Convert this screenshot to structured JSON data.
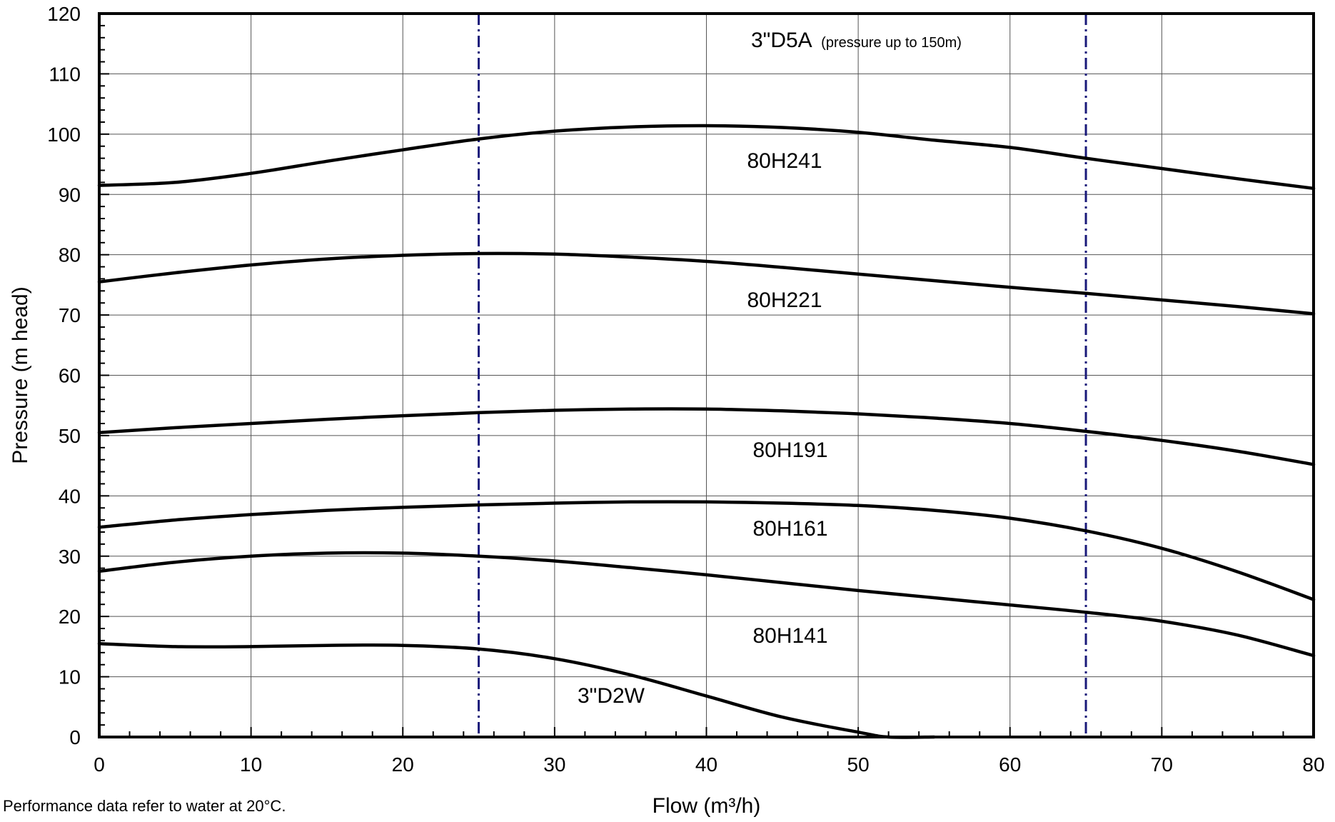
{
  "chart_data": {
    "type": "line",
    "title": "",
    "xlabel": "Flow (m³/h)",
    "ylabel": "Pressure (m head)",
    "xlim": [
      0,
      80
    ],
    "ylim": [
      0,
      120
    ],
    "xticks": [
      0,
      10,
      20,
      30,
      40,
      50,
      60,
      70,
      80
    ],
    "yticks": [
      0,
      10,
      20,
      30,
      40,
      50,
      60,
      70,
      80,
      90,
      100,
      110,
      120
    ],
    "grid": true,
    "legend": "none",
    "vertical_lines": [
      25,
      65
    ],
    "series": [
      {
        "name": "80H241",
        "x": [
          0,
          5,
          10,
          15,
          20,
          25,
          30,
          35,
          40,
          45,
          50,
          55,
          60,
          65,
          70,
          75,
          80
        ],
        "y": [
          91.5,
          92.0,
          93.5,
          95.5,
          97.4,
          99.2,
          100.5,
          101.2,
          101.4,
          101.1,
          100.3,
          99.0,
          97.8,
          96.0,
          94.3,
          92.6,
          91.0
        ]
      },
      {
        "name": "80H221",
        "x": [
          0,
          5,
          10,
          15,
          20,
          25,
          30,
          35,
          40,
          45,
          50,
          55,
          60,
          65,
          70,
          75,
          80
        ],
        "y": [
          75.5,
          77.0,
          78.3,
          79.3,
          79.9,
          80.2,
          80.1,
          79.6,
          78.9,
          77.9,
          76.8,
          75.7,
          74.6,
          73.6,
          72.5,
          71.4,
          70.2
        ]
      },
      {
        "name": "80H191",
        "x": [
          0,
          5,
          10,
          15,
          20,
          25,
          30,
          35,
          40,
          45,
          50,
          55,
          60,
          65,
          70,
          75,
          80
        ],
        "y": [
          50.5,
          51.3,
          52.0,
          52.7,
          53.3,
          53.8,
          54.2,
          54.4,
          54.4,
          54.1,
          53.6,
          52.9,
          52.0,
          50.7,
          49.2,
          47.4,
          45.2
        ]
      },
      {
        "name": "80H161",
        "x": [
          0,
          5,
          10,
          15,
          20,
          25,
          30,
          35,
          40,
          45,
          50,
          55,
          60,
          65,
          70,
          75,
          80
        ],
        "y": [
          34.8,
          36.0,
          36.9,
          37.6,
          38.1,
          38.5,
          38.8,
          39.0,
          39.0,
          38.8,
          38.4,
          37.6,
          36.3,
          34.2,
          31.3,
          27.4,
          22.8
        ]
      },
      {
        "name": "80H141",
        "x": [
          0,
          5,
          10,
          15,
          20,
          25,
          30,
          35,
          40,
          45,
          50,
          55,
          60,
          65,
          70,
          75,
          80
        ],
        "y": [
          27.5,
          29.0,
          30.0,
          30.5,
          30.5,
          30.0,
          29.2,
          28.1,
          26.9,
          25.6,
          24.3,
          23.1,
          21.9,
          20.7,
          19.2,
          16.9,
          13.5
        ]
      },
      {
        "name": "3\"D2W",
        "x": [
          0,
          5,
          10,
          15,
          20,
          25,
          30,
          35,
          40,
          45,
          50,
          52,
          55
        ],
        "y": [
          15.5,
          15.0,
          15.0,
          15.2,
          15.2,
          14.6,
          13.0,
          10.3,
          6.8,
          3.3,
          0.8,
          0.0,
          0.0
        ]
      }
    ],
    "annotations": {
      "model": "3\"D5A",
      "model_note": "(pressure up to 150m)",
      "footnote": "Performance data refer to water at 20°C."
    }
  }
}
